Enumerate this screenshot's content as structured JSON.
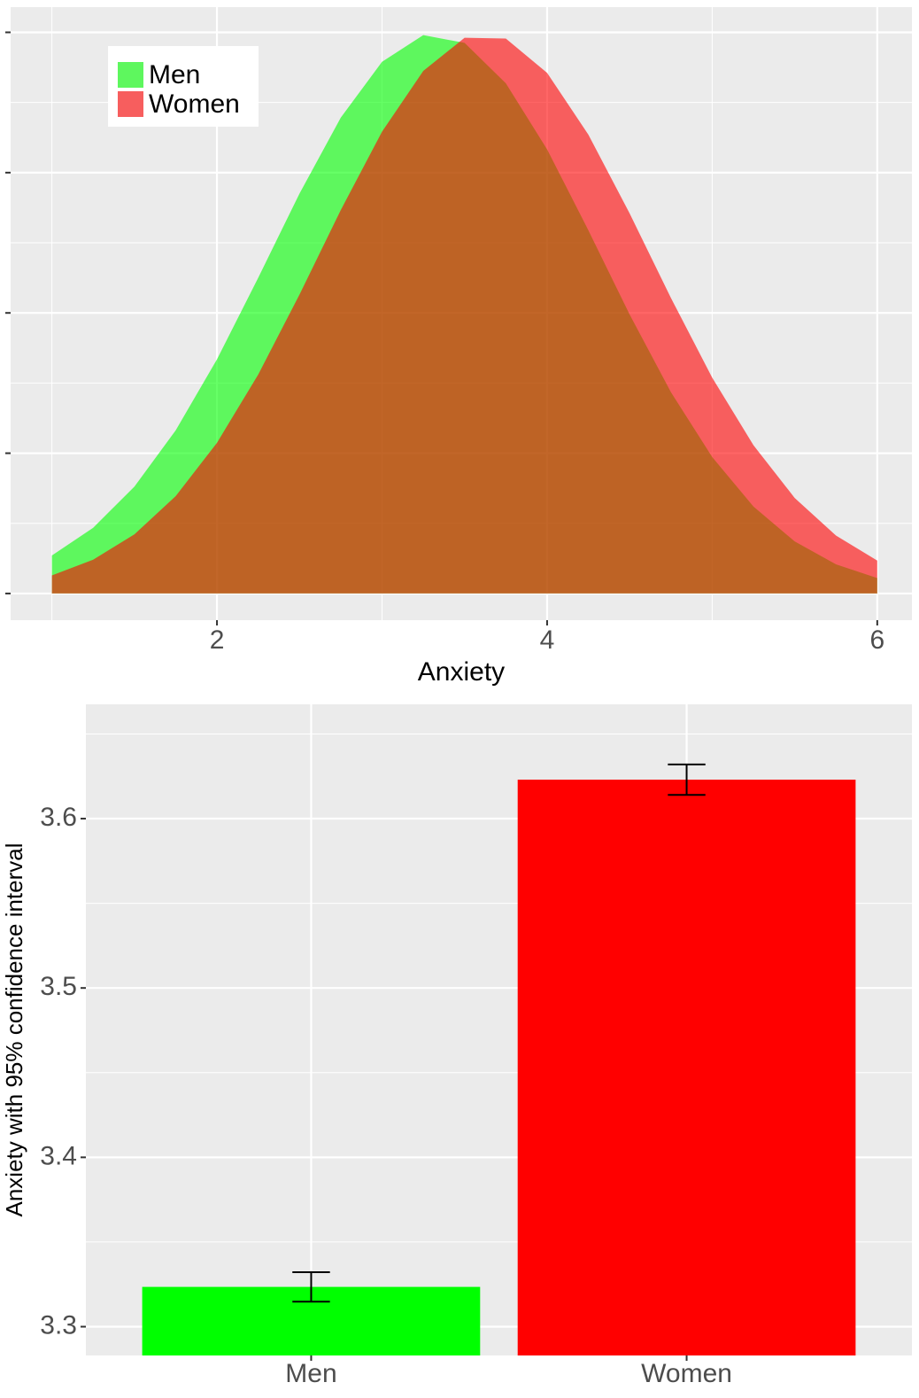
{
  "chart_data": [
    {
      "type": "area",
      "x_label": "Anxiety",
      "x": [
        1,
        1.25,
        1.5,
        1.75,
        2,
        2.25,
        2.5,
        2.75,
        3,
        3.25,
        3.5,
        3.75,
        4,
        4.25,
        4.5,
        4.75,
        5,
        5.25,
        5.5,
        5.75,
        6
      ],
      "series": [
        {
          "name": "Men",
          "color": "#00ff00",
          "values": [
            0.0271,
            0.0468,
            0.0762,
            0.1163,
            0.1669,
            0.2251,
            0.2851,
            0.3392,
            0.379,
            0.398,
            0.3925,
            0.3637,
            0.3166,
            0.2589,
            0.1989,
            0.1435,
            0.0973,
            0.062,
            0.0371,
            0.0208,
            0.011
          ]
        },
        {
          "name": "Women",
          "color": "#ff0000",
          "values": [
            0.0129,
            0.0241,
            0.0422,
            0.0694,
            0.1074,
            0.1561,
            0.2131,
            0.2733,
            0.3292,
            0.3725,
            0.3961,
            0.3956,
            0.3711,
            0.3271,
            0.2709,
            0.2107,
            0.1539,
            0.1057,
            0.0681,
            0.0413,
            0.0235
          ]
        }
      ],
      "opacity": 0.6,
      "xlim": [
        0.75,
        6.21
      ],
      "xticks": [
        2,
        4,
        6
      ],
      "ylim": [
        -0.019,
        0.418
      ],
      "yticks": [
        0,
        0.1,
        0.2,
        0.3,
        0.4
      ],
      "grid": true,
      "legend": "top-left"
    },
    {
      "type": "bar",
      "y_label": "Anxiety with 95% confidence interval",
      "categories": [
        "Men",
        "Women"
      ],
      "values": [
        3.3235,
        3.623
      ],
      "errors": [
        0.0087,
        0.009
      ],
      "colors": [
        "#00ff00",
        "#ff0000"
      ],
      "ylim": [
        3.283,
        3.6675
      ],
      "yticks": [
        3.3,
        3.4,
        3.5,
        3.6
      ],
      "grid": true
    }
  ]
}
